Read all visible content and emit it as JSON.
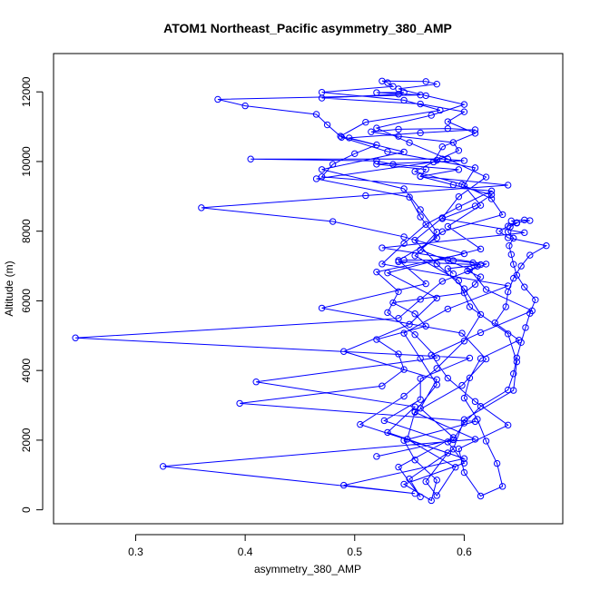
{
  "chart_data": {
    "type": "line",
    "title": "ATOM1 Northeast_Pacific asymmetry_380_AMP",
    "xlabel": "asymmetry_380_AMP",
    "ylabel": "Altitude (m)",
    "xlim": [
      0.225,
      0.69
    ],
    "ylim": [
      -400,
      13100
    ],
    "xticks": [
      0.3,
      0.4,
      0.5,
      0.6
    ],
    "yticks": [
      0,
      2000,
      4000,
      6000,
      8000,
      10000,
      12000
    ],
    "series_color": "#0000ff",
    "marker": "open-circle",
    "grid": false,
    "legend": false,
    "series": [
      {
        "x": [
          0.52,
          0.59,
          0.6,
          0.615,
          0.64,
          0.645,
          0.648,
          0.652,
          0.656,
          0.66,
          0.665,
          0.655,
          0.648,
          0.645,
          0.643,
          0.641,
          0.645,
          0.64,
          0.642,
          0.648,
          0.643,
          0.655,
          0.66,
          0.648,
          0.64,
          0.632,
          0.64,
          0.675,
          0.66,
          0.652,
          0.645,
          0.64,
          0.638,
          0.628,
          0.65,
          0.615,
          0.605,
          0.6,
          0.612,
          0.62,
          0.63,
          0.635,
          0.615,
          0.6,
          0.595,
          0.64,
          0.61,
          0.585,
          0.57,
          0.615,
          0.662,
          0.62,
          0.605,
          0.56,
          0.58,
          0.635,
          0.625,
          0.598,
          0.555,
          0.575,
          0.595,
          0.59,
          0.54,
          0.515,
          0.54,
          0.585,
          0.61,
          0.56,
          0.495,
          0.52,
          0.5,
          0.48,
          0.47,
          0.625,
          0.595,
          0.565,
          0.545,
          0.525,
          0.64,
          0.585,
          0.545,
          0.56,
          0.575,
          0.555,
          0.548,
          0.592,
          0.575,
          0.565,
          0.585,
          0.505,
          0.545,
          0.575,
          0.6,
          0.615,
          0.6,
          0.575,
          0.555,
          0.58,
          0.595,
          0.62,
          0.585,
          0.55,
          0.52,
          0.57,
          0.6,
          0.565,
          0.54,
          0.575,
          0.565,
          0.525,
          0.53,
          0.535,
          0.47,
          0.545,
          0.578,
          0.51,
          0.487,
          0.545,
          0.47,
          0.545,
          0.56,
          0.575,
          0.555,
          0.595,
          0.605,
          0.64,
          0.648,
          0.645,
          0.6,
          0.59,
          0.55,
          0.56,
          0.54,
          0.59,
          0.56,
          0.575,
          0.49,
          0.55,
          0.575,
          0.53,
          0.615,
          0.585,
          0.615,
          0.6,
          0.61,
          0.53,
          0.488,
          0.475,
          0.465,
          0.4,
          0.375,
          0.56,
          0.52,
          0.545,
          0.54,
          0.47,
          0.56,
          0.6,
          0.585,
          0.61,
          0.58,
          0.572,
          0.465,
          0.55,
          0.56,
          0.575,
          0.54,
          0.565,
          0.47,
          0.598,
          0.62,
          0.598,
          0.555,
          0.61,
          0.325,
          0.555,
          0.49,
          0.6,
          0.53,
          0.555,
          0.41,
          0.575,
          0.555,
          0.53,
          0.54,
          0.52,
          0.6,
          0.545,
          0.48,
          0.36,
          0.51,
          0.64,
          0.56,
          0.565,
          0.52,
          0.6,
          0.58,
          0.405,
          0.52,
          0.535,
          0.595,
          0.56,
          0.59,
          0.625,
          0.61,
          0.58,
          0.655,
          0.525,
          0.62,
          0.58,
          0.56,
          0.54,
          0.245,
          0.605,
          0.56,
          0.56,
          0.527,
          0.585,
          0.6,
          0.545,
          0.57,
          0.575,
          0.555,
          0.545,
          0.61,
          0.395,
          0.525,
          0.545,
          0.54,
          0.52,
          0.565,
          0.555,
          0.535,
          0.6,
          0.61,
          0.615,
          0.603,
          0.612,
          0.608,
          0.59,
          0.585,
          0.545,
          0.54,
          0.615,
          0.585,
          0.59
        ]
      }
    ]
  }
}
